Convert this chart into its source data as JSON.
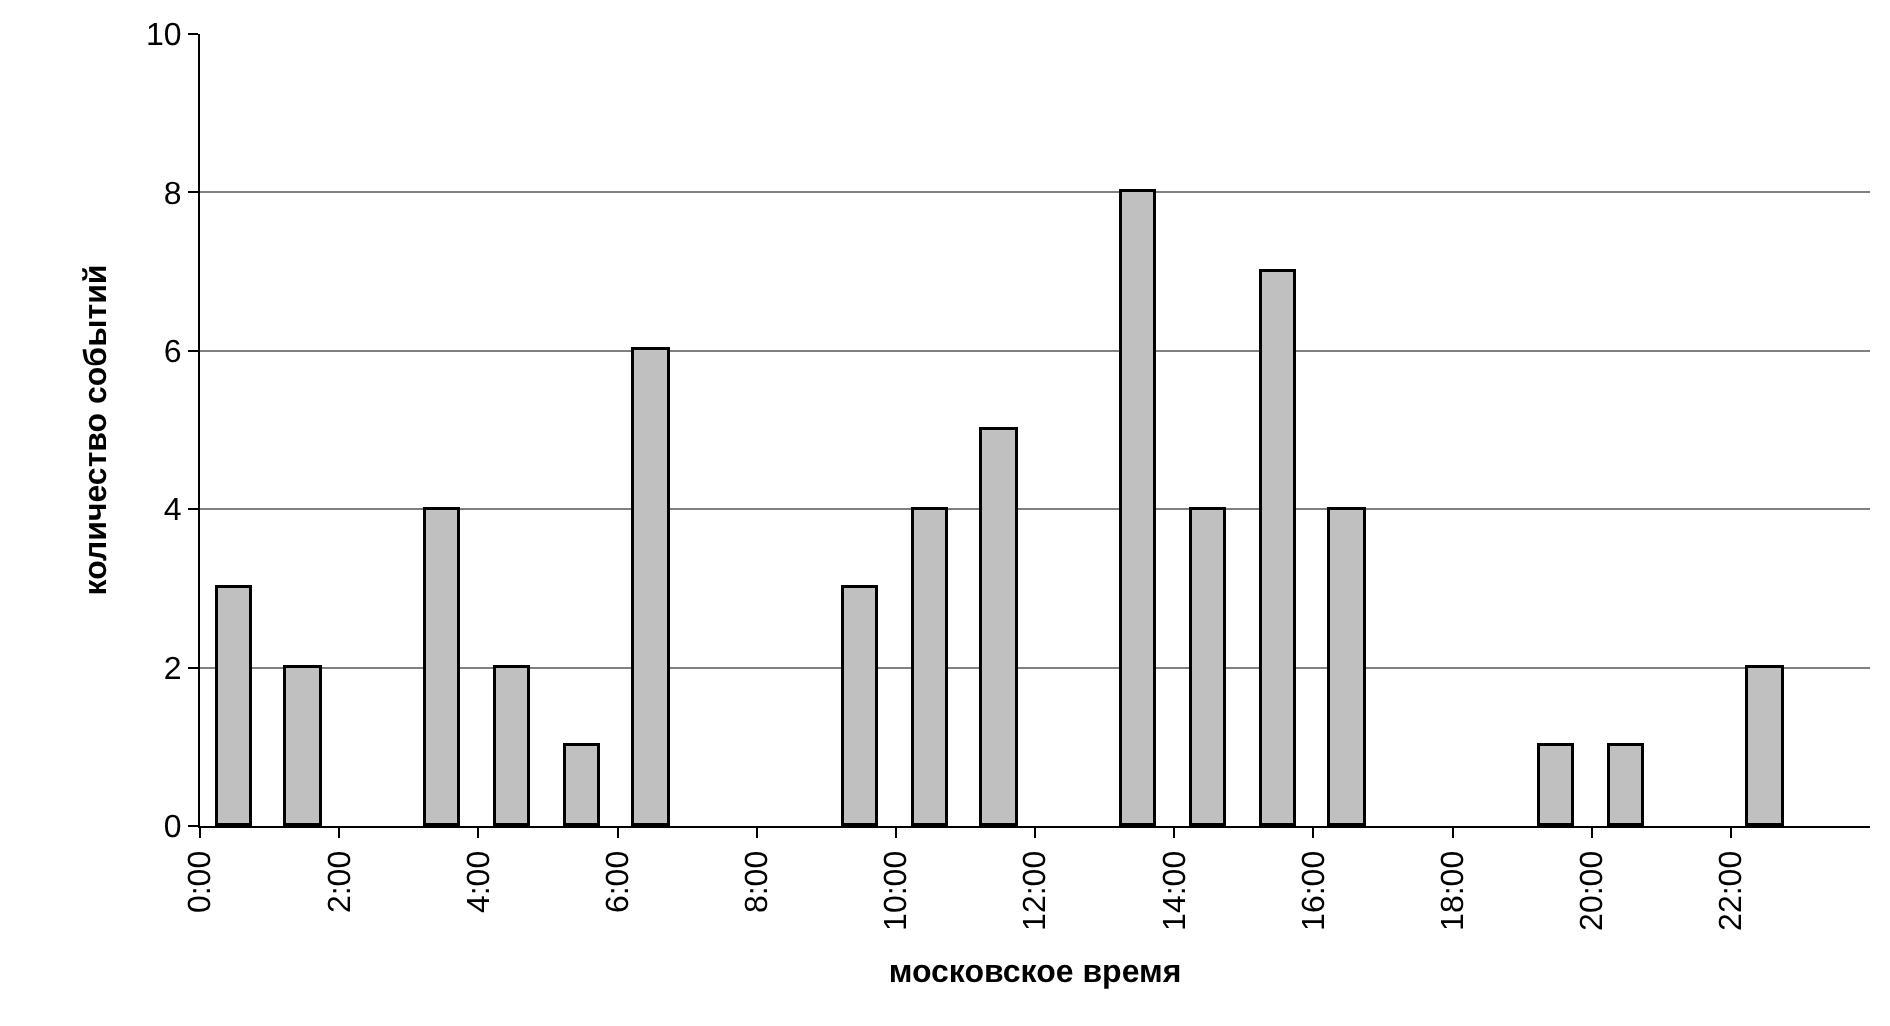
{
  "chart_data": {
    "type": "bar",
    "xlabel": "московское время",
    "ylabel": "количество событий",
    "x": [
      0.5,
      1.5,
      2.5,
      3.5,
      4.5,
      5.5,
      6.5,
      7.5,
      8.5,
      9.5,
      10.5,
      11.5,
      12.5,
      13.5,
      14.5,
      15.5,
      16.5,
      17.5,
      18.5,
      19.5,
      20.5,
      21.5,
      22.5,
      23.5
    ],
    "values": [
      3,
      2,
      0,
      4,
      2,
      1,
      6,
      0,
      0,
      3,
      4,
      5,
      0,
      8,
      4,
      7,
      4,
      0,
      0,
      1,
      1,
      0,
      2,
      0
    ],
    "color": "#c0c0c0",
    "xlim": [
      0,
      24
    ],
    "xticks": [
      {
        "value": 0,
        "label": "0:00"
      },
      {
        "value": 2,
        "label": "2:00"
      },
      {
        "value": 4,
        "label": "4:00"
      },
      {
        "value": 6,
        "label": "6:00"
      },
      {
        "value": 8,
        "label": "8:00"
      },
      {
        "value": 10,
        "label": "10:00"
      },
      {
        "value": 12,
        "label": "12:00"
      },
      {
        "value": 14,
        "label": "14:00"
      },
      {
        "value": 16,
        "label": "16:00"
      },
      {
        "value": 18,
        "label": "18:00"
      },
      {
        "value": 20,
        "label": "20:00"
      },
      {
        "value": 22,
        "label": "22:00"
      }
    ],
    "ylim": [
      0,
      10
    ],
    "yticks": [
      0,
      2,
      4,
      6,
      8,
      10
    ],
    "grid": "y"
  }
}
